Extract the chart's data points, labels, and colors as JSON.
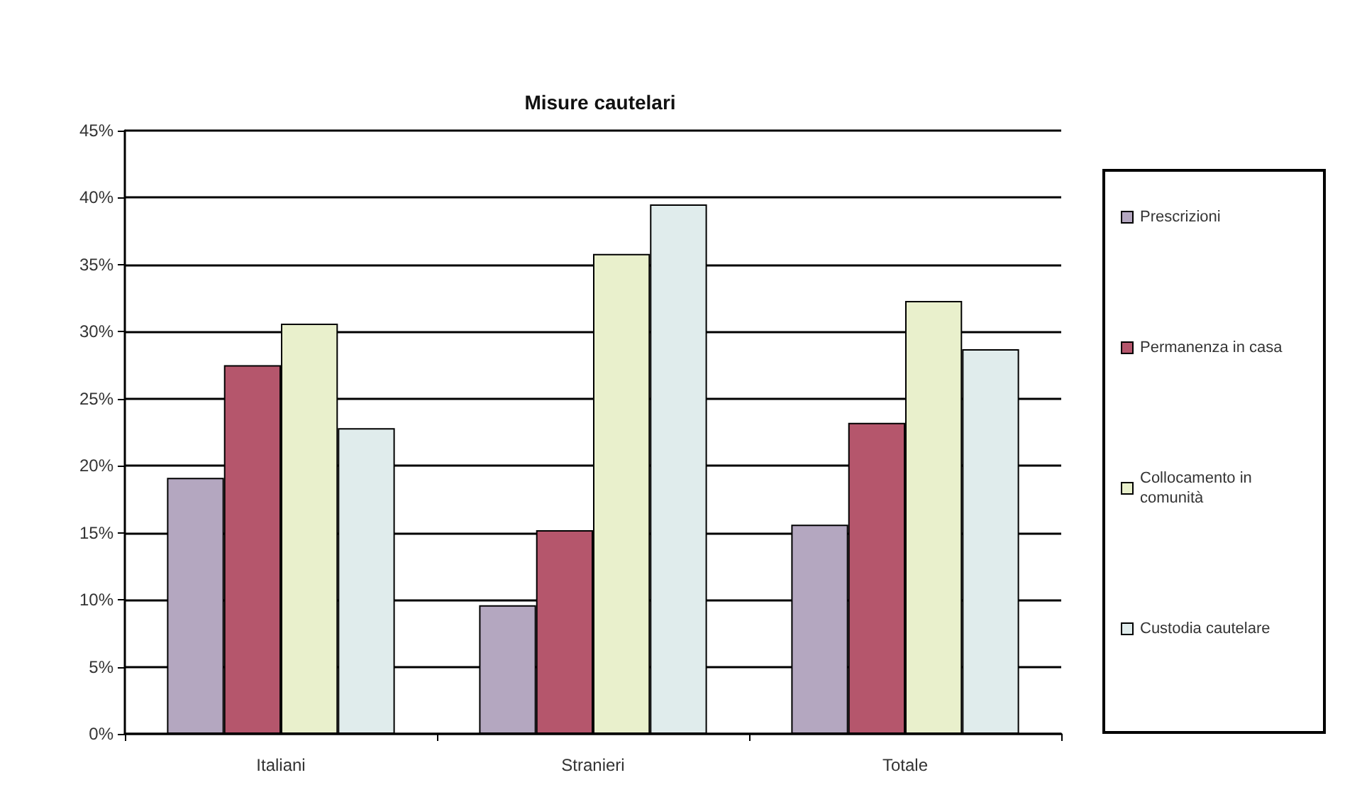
{
  "chart_data": {
    "type": "bar",
    "title": "Misure cautelari",
    "categories": [
      "Italiani",
      "Stranieri",
      "Totale"
    ],
    "series": [
      {
        "name": "Prescrizioni",
        "color": "#b4a7c0",
        "values": [
          19.1,
          9.6,
          15.6
        ]
      },
      {
        "name": "Permanenza in casa",
        "color": "#b5566c",
        "values": [
          27.5,
          15.2,
          23.2
        ]
      },
      {
        "name": "Collocamento in comunità",
        "color": "#e9f0cc",
        "values": [
          30.6,
          35.8,
          32.3
        ]
      },
      {
        "name": "Custodia cautelare",
        "color": "#e0ecec",
        "values": [
          22.8,
          39.5,
          28.7
        ]
      }
    ],
    "ylim": [
      0,
      45
    ],
    "yticks": [
      {
        "value": 0,
        "label": "0%"
      },
      {
        "value": 5,
        "label": "5%"
      },
      {
        "value": 10,
        "label": "10%"
      },
      {
        "value": 15,
        "label": "15%"
      },
      {
        "value": 20,
        "label": "20%"
      },
      {
        "value": 25,
        "label": "25%"
      },
      {
        "value": 30,
        "label": "30%"
      },
      {
        "value": 35,
        "label": "35%"
      },
      {
        "value": 40,
        "label": "40%"
      },
      {
        "value": 45,
        "label": "45%"
      }
    ],
    "grid": "y",
    "legend": "right"
  }
}
